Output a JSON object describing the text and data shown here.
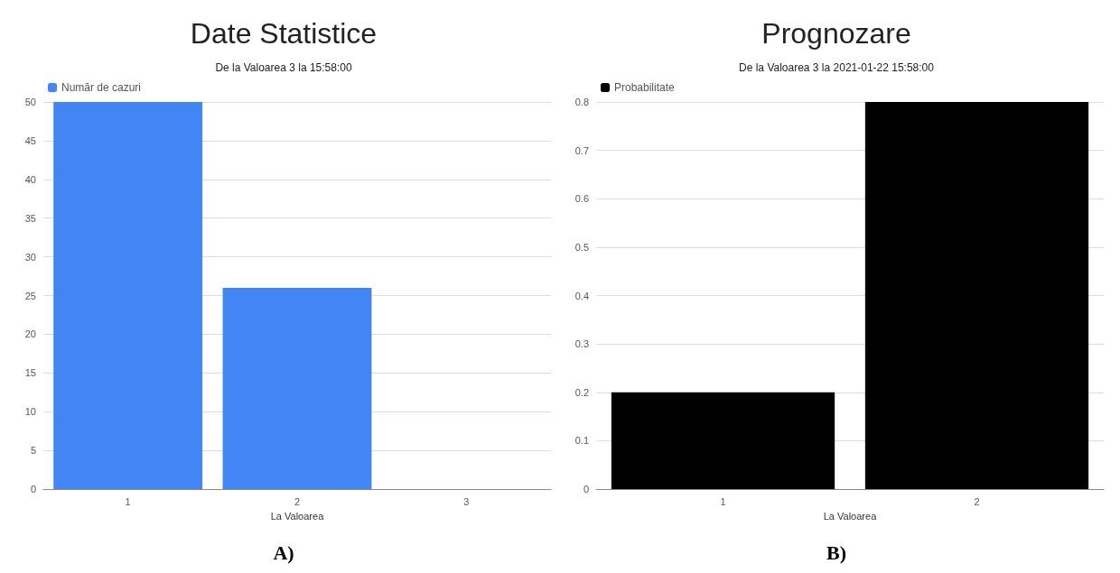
{
  "chart_data": [
    {
      "type": "bar",
      "title": "Date Statistice",
      "subtitle": "De la Valoarea 3 la 15:58:00",
      "xlabel": "La Valoarea",
      "categories": [
        "1",
        "2",
        "3"
      ],
      "series": [
        {
          "name": "Număr de cazuri",
          "color": "#4285f4",
          "values": [
            50,
            26,
            0
          ]
        }
      ],
      "ylim": [
        0,
        50
      ],
      "yticks": [
        0,
        5,
        10,
        15,
        20,
        25,
        30,
        35,
        40,
        45,
        50
      ],
      "grid": "y",
      "legend": "top left",
      "annotations": [
        "A)"
      ]
    },
    {
      "type": "bar",
      "title": "Prognozare",
      "subtitle": "De la Valoarea 3 la 2021-01-22 15:58:00",
      "xlabel": "La Valoarea",
      "categories": [
        "1",
        "2"
      ],
      "series": [
        {
          "name": "Probabilitate",
          "color": "#000000",
          "values": [
            0.2,
            0.8
          ]
        }
      ],
      "ylim": [
        0,
        0.8
      ],
      "yticks": [
        0,
        0.1,
        0.2,
        0.3,
        0.4,
        0.5,
        0.6,
        0.7,
        0.8
      ],
      "grid": "y",
      "legend": "top left",
      "annotations": [
        "B)"
      ]
    }
  ]
}
